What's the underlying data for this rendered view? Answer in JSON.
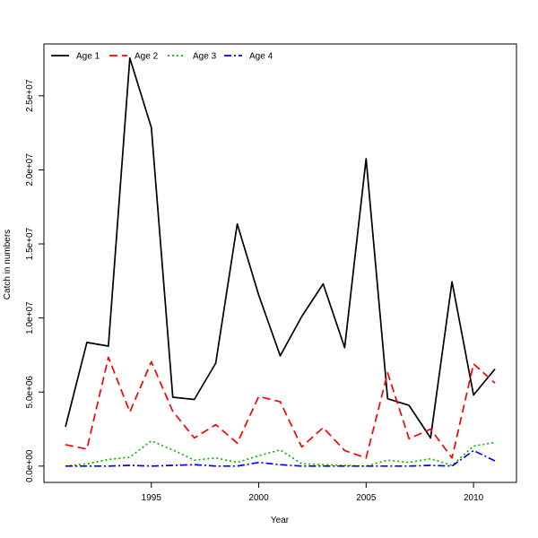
{
  "chart_data": {
    "type": "line",
    "xlabel": "Year",
    "ylabel": "Catch in numbers",
    "xlim": [
      1990.0,
      2012.0
    ],
    "ylim": [
      -1100000,
      28500000
    ],
    "x_ticks": [
      1995,
      2000,
      2005,
      2010
    ],
    "x_tick_labels": [
      "1995",
      "2000",
      "2005",
      "2010"
    ],
    "y_ticks": [
      0,
      5000000,
      10000000,
      15000000,
      20000000,
      25000000
    ],
    "y_tick_labels": [
      "0.0e+00",
      "5.0e+06",
      "1.0e+07",
      "1.5e+07",
      "2.0e+07",
      "2.5e+07"
    ],
    "legend_position": "top-left",
    "grid": false,
    "x": [
      1991,
      1992,
      1993,
      1994,
      1995,
      1996,
      1997,
      1998,
      1999,
      2000,
      2001,
      2002,
      2003,
      2004,
      2005,
      2006,
      2007,
      2008,
      2009,
      2010,
      2011
    ],
    "series": [
      {
        "name": "Age 1",
        "color": "#000000",
        "dash": "",
        "values": [
          2650000,
          8350000,
          8100000,
          27550000,
          22850000,
          4650000,
          4500000,
          6950000,
          16350000,
          11550000,
          7450000,
          10100000,
          12300000,
          8000000,
          20750000,
          4550000,
          4100000,
          1900000,
          12450000,
          4800000,
          6550000
        ]
      },
      {
        "name": "Age 2",
        "color": "#ff0000",
        "dash": "9,5",
        "values": [
          1450000,
          1150000,
          7350000,
          3650000,
          7050000,
          3700000,
          1900000,
          2800000,
          1550000,
          4700000,
          4350000,
          1300000,
          2600000,
          1050000,
          550000,
          6300000,
          1850000,
          2500000,
          550000,
          6900000,
          5600000
        ]
      },
      {
        "name": "Age 3",
        "color": "#00bb00",
        "dash": "2,3",
        "values": [
          0,
          150000,
          450000,
          600000,
          1700000,
          1100000,
          400000,
          550000,
          250000,
          700000,
          1100000,
          150000,
          100000,
          50000,
          0,
          400000,
          250000,
          500000,
          50000,
          1350000,
          1600000
        ]
      },
      {
        "name": "Age 4",
        "color": "#0000ff",
        "dash": "8,3,2,3",
        "values": [
          0,
          0,
          0,
          50000,
          0,
          50000,
          100000,
          0,
          0,
          250000,
          100000,
          0,
          0,
          0,
          0,
          0,
          0,
          50000,
          0,
          1050000,
          350000
        ]
      }
    ]
  }
}
